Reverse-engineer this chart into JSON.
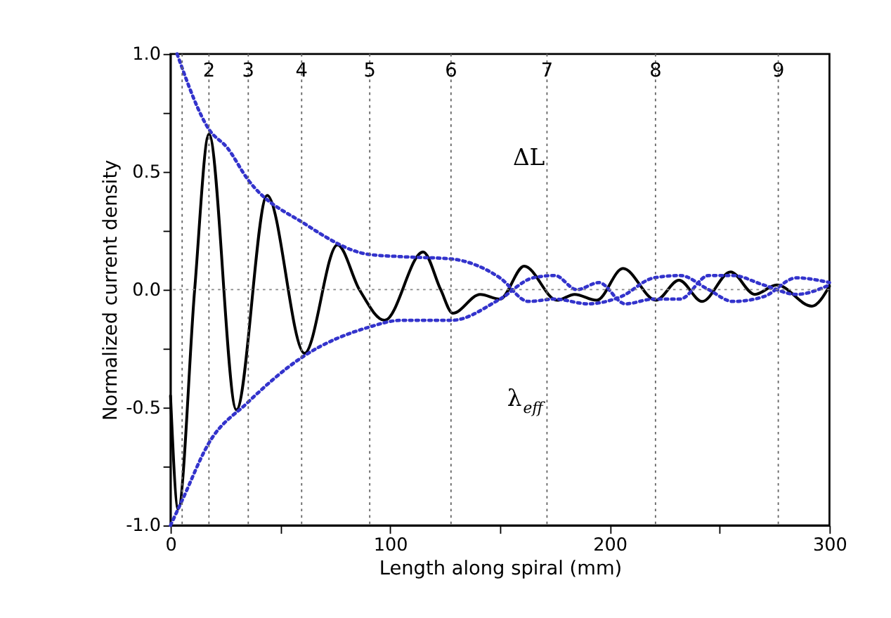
{
  "chart_data": {
    "type": "line",
    "xlabel": "Length along spiral (mm)",
    "ylabel": "Normalized current density",
    "xlim": [
      0,
      300
    ],
    "ylim": [
      -1.0,
      1.0
    ],
    "xticks": [
      0,
      {
        "value": 50,
        "label": null
      },
      100,
      {
        "value": 150,
        "label": null
      },
      200,
      {
        "value": 250,
        "label": null
      },
      300
    ],
    "yticks": [
      {
        "value": -1.0,
        "label": "-1.0"
      },
      {
        "value": -0.75,
        "label": null
      },
      {
        "value": -0.5,
        "label": "-0.5"
      },
      {
        "value": -0.25,
        "label": null
      },
      {
        "value": 0,
        "label": "0.0"
      },
      {
        "value": 0.25,
        "label": null
      },
      {
        "value": 0.5,
        "label": "0.5"
      },
      {
        "value": 0.75,
        "label": null
      },
      {
        "value": 1.0,
        "label": "1.0"
      }
    ],
    "grid": false,
    "marker": "none",
    "series": [
      {
        "color": "#000000",
        "line_style": "solid",
        "x": [
          0,
          3.5,
          11,
          17.5,
          30,
          44,
          61,
          76,
          86,
          97.5,
          115,
          123,
          128.5,
          141,
          150,
          161,
          176,
          184,
          194,
          206,
          221,
          231.5,
          242,
          255,
          266,
          276,
          292,
          300
        ],
        "values": [
          -0.45,
          -0.93,
          0.0,
          0.66,
          -0.51,
          0.4,
          -0.27,
          0.19,
          0.0,
          -0.13,
          0.16,
          0.0,
          -0.1,
          -0.02,
          -0.04,
          0.1,
          -0.045,
          -0.02,
          -0.045,
          0.09,
          -0.045,
          0.04,
          -0.05,
          0.075,
          -0.02,
          0.02,
          -0.07,
          0.015
        ]
      },
      {
        "color": "#3333cc",
        "line_style": "dotted",
        "x": [
          3,
          17.5,
          26,
          35,
          61,
          90,
          105,
          128,
          150,
          163,
          175,
          190,
          205,
          220,
          232,
          245,
          256,
          270,
          285,
          300
        ],
        "values": [
          1.0,
          0.68,
          0.6,
          0.47,
          0.28,
          0.15,
          0.14,
          0.13,
          0.05,
          -0.05,
          -0.04,
          -0.06,
          -0.03,
          0.05,
          0.06,
          0.0,
          -0.05,
          -0.03,
          0.05,
          0.03
        ]
      },
      {
        "color": "#3333cc",
        "line_style": "dotted",
        "x": [
          0,
          5,
          17.5,
          35,
          61,
          90,
          105,
          128,
          150,
          165,
          175,
          185,
          195,
          207,
          220,
          232,
          245,
          256,
          270,
          285,
          300
        ],
        "values": [
          -1.0,
          -0.9,
          -0.65,
          -0.48,
          -0.28,
          -0.16,
          -0.13,
          -0.13,
          -0.04,
          0.05,
          0.06,
          0.0,
          0.03,
          -0.06,
          -0.04,
          -0.04,
          0.06,
          0.06,
          0.02,
          -0.02,
          0.02
        ]
      }
    ],
    "ref_lines": [
      {
        "axis": "y",
        "value": 0,
        "color": "#888888",
        "line_style": "dotted"
      },
      {
        "axis": "x",
        "value": 5.3,
        "color": "#666666",
        "line_style": "dotted"
      },
      {
        "axis": "x",
        "value": 17.5,
        "color": "#666666",
        "line_style": "dotted"
      },
      {
        "axis": "x",
        "value": 35.4,
        "color": "#666666",
        "line_style": "dotted"
      },
      {
        "axis": "x",
        "value": 59.7,
        "color": "#666666",
        "line_style": "dotted"
      },
      {
        "axis": "x",
        "value": 90.7,
        "color": "#666666",
        "line_style": "dotted"
      },
      {
        "axis": "x",
        "value": 127.7,
        "color": "#666666",
        "line_style": "dotted"
      },
      {
        "axis": "x",
        "value": 171.4,
        "color": "#666666",
        "line_style": "dotted"
      },
      {
        "axis": "x",
        "value": 220.8,
        "color": "#666666",
        "line_style": "dotted"
      },
      {
        "axis": "x",
        "value": 276.7,
        "color": "#666666",
        "line_style": "dotted"
      }
    ],
    "annotations": [
      {
        "text": "2",
        "x": 17.5,
        "y": 0.93
      },
      {
        "text": "3",
        "x": 35.4,
        "y": 0.93
      },
      {
        "text": "4",
        "x": 59.7,
        "y": 0.93
      },
      {
        "text": "5",
        "x": 90.7,
        "y": 0.93
      },
      {
        "text": "6",
        "x": 127.7,
        "y": 0.93
      },
      {
        "text": "7",
        "x": 171.4,
        "y": 0.93
      },
      {
        "text": "8",
        "x": 220.8,
        "y": 0.93
      },
      {
        "text": "9",
        "x": 276.7,
        "y": 0.93
      },
      "ΔL",
      "λ$_{eff}$"
    ]
  }
}
